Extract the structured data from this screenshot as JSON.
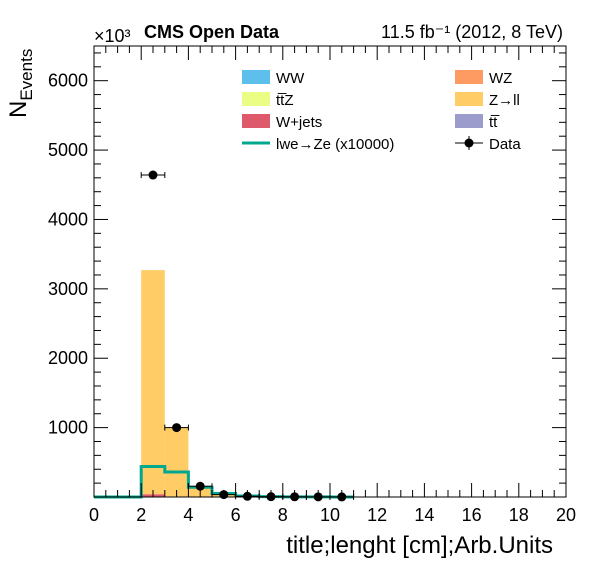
{
  "chart_data": {
    "type": "bar",
    "header": {
      "left": "CMS Open Data",
      "right": "11.5 fb⁻¹ (2012, 8 TeV)"
    },
    "y_multiplier": "×10³",
    "xlabel": "title;lenght [cm];Arb.Units",
    "ylabel": "N",
    "ylabel_sub": "Events",
    "xlim": [
      0,
      20
    ],
    "ylim": [
      0,
      6500
    ],
    "x_ticks": [
      0,
      2,
      4,
      6,
      8,
      10,
      12,
      14,
      16,
      18,
      20
    ],
    "y_ticks": [
      1000,
      2000,
      3000,
      4000,
      5000,
      6000
    ],
    "bin_edges": [
      2,
      3,
      4,
      5,
      6,
      7,
      8,
      9,
      10,
      11
    ],
    "stack": [
      {
        "name": "W+jets",
        "color": "#de5a6a",
        "values": [
          40,
          8,
          3,
          1,
          0,
          0,
          0,
          0,
          0,
          0
        ]
      },
      {
        "name": "Z→ll",
        "color": "#ffcc66",
        "values": [
          3230,
          1000,
          150,
          45,
          10,
          3,
          2,
          1,
          1,
          0
        ]
      }
    ],
    "signal": {
      "name": "lwe→Ze (x10000)",
      "color": "#00a88f",
      "values": [
        440,
        360,
        140,
        50,
        15,
        5,
        2,
        1,
        0,
        0
      ]
    },
    "data": {
      "name": "Data",
      "color": "#000000",
      "points": [
        {
          "x": 2.5,
          "y": 4640,
          "xerr": 0.5
        },
        {
          "x": 3.5,
          "y": 1000,
          "xerr": 0.5
        },
        {
          "x": 4.5,
          "y": 155,
          "xerr": 0.5
        },
        {
          "x": 5.5,
          "y": 35,
          "xerr": 0.5
        },
        {
          "x": 6.5,
          "y": 10,
          "xerr": 0.5
        },
        {
          "x": 7.5,
          "y": 5,
          "xerr": 0.5
        },
        {
          "x": 8.5,
          "y": 3,
          "xerr": 0.5
        },
        {
          "x": 9.5,
          "y": 2,
          "xerr": 0.5
        },
        {
          "x": 10.5,
          "y": 1,
          "xerr": 0.5
        }
      ]
    },
    "legend": [
      {
        "label": "WW",
        "color": "#5ebeec",
        "kind": "fill"
      },
      {
        "label": "WZ",
        "color": "#fe9b63",
        "kind": "fill"
      },
      {
        "label": "tt̅Z",
        "color": "#ebfd85",
        "kind": "fill"
      },
      {
        "label": "Z→ll",
        "color": "#ffcc66",
        "kind": "fill"
      },
      {
        "label": "W+jets",
        "color": "#de5a6a",
        "kind": "fill"
      },
      {
        "label": "tt̅",
        "color": "#9c9ccc",
        "kind": "fill"
      },
      {
        "label": "lwe→Ze (x10000)",
        "color": "#00a88f",
        "kind": "line"
      },
      {
        "label": "Data",
        "color": "#000000",
        "kind": "marker"
      }
    ],
    "legend_placement": "top-right",
    "grid": false
  }
}
